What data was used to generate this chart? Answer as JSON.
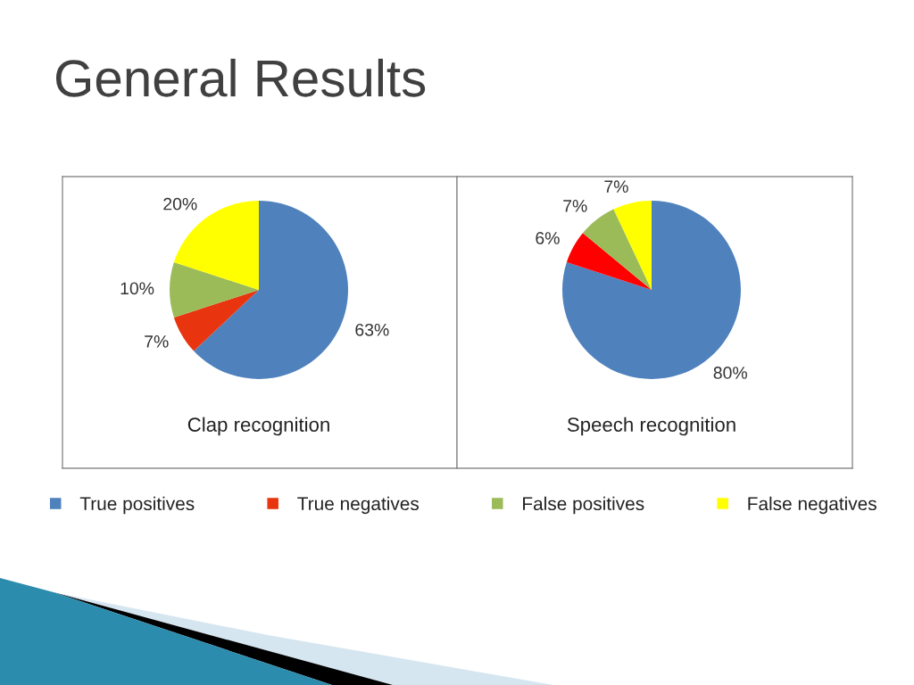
{
  "chart_data": [
    {
      "type": "other",
      "title": "General Results"
    },
    {
      "type": "pie",
      "title": "Clap recognition",
      "categories": [
        "True positives",
        "True negatives",
        "False positives",
        "False negatives"
      ],
      "values": [
        63,
        7,
        10,
        20
      ],
      "colors": [
        "#4f81bd",
        "#e8340f",
        "#9bbb59",
        "#ffff00"
      ],
      "value_labels": [
        "63%",
        "7%",
        "10%",
        "20%"
      ],
      "legend": "bottom"
    },
    {
      "type": "pie",
      "title": "Speech recognition",
      "categories": [
        null,
        null,
        null,
        null
      ],
      "values": [
        80,
        6,
        7,
        7
      ],
      "colors": [
        "#4f81bd",
        "#ff0000",
        "#9bbb59",
        "#ffff00"
      ],
      "value_labels": [
        "80%",
        "6%",
        "7%",
        "7%"
      ]
    }
  ]
}
